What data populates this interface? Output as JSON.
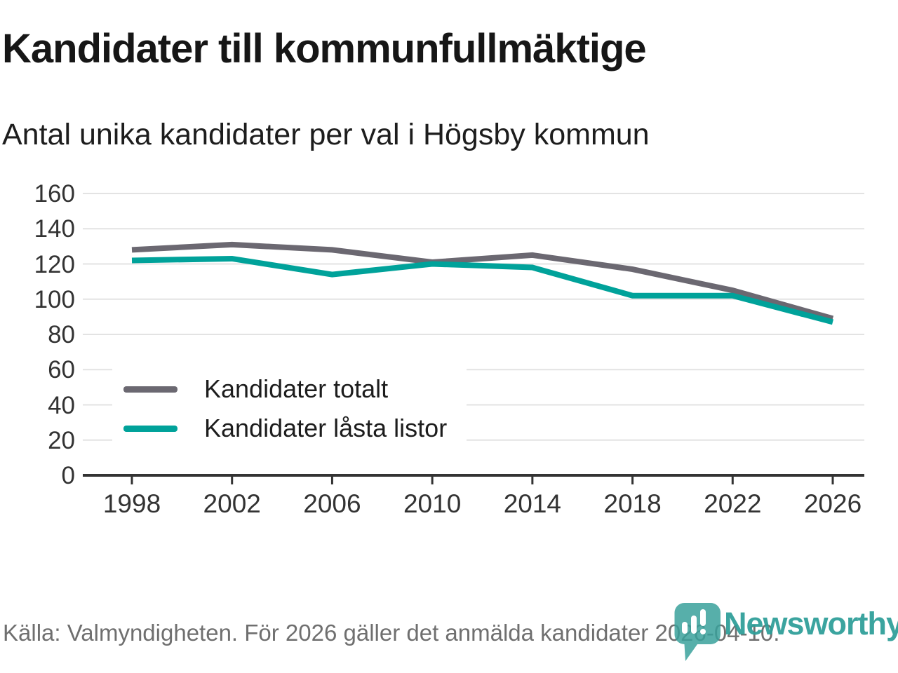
{
  "header": {
    "title": "Kandidater till kommunfullmäktige",
    "subtitle": "Antal unika kandidater per val i Högsby kommun"
  },
  "chart_data": {
    "type": "line",
    "categories": [
      "1998",
      "2002",
      "2006",
      "2010",
      "2014",
      "2018",
      "2022",
      "2026"
    ],
    "series": [
      {
        "name": "Kandidater totalt",
        "color": "#6b6871",
        "values": [
          128,
          131,
          128,
          121,
          125,
          117,
          105,
          89
        ]
      },
      {
        "name": "Kandidater låsta listor",
        "color": "#00a29a",
        "values": [
          122,
          123,
          114,
          120,
          118,
          102,
          102,
          87
        ]
      }
    ],
    "xlabel": "",
    "ylabel": "",
    "ylim": [
      0,
      160
    ],
    "ytick_step": 20,
    "grid": true,
    "legend_position": "inside-lower-left",
    "gridline_color": "#e3e3e3",
    "axis_color": "#333333"
  },
  "footer": {
    "source_note": "Källa: Valmyndigheten. För 2026 gäller det anmälda kandidater 2026-04-10.",
    "brand": "Newsworthy",
    "brand_color": "#2d9e98"
  }
}
